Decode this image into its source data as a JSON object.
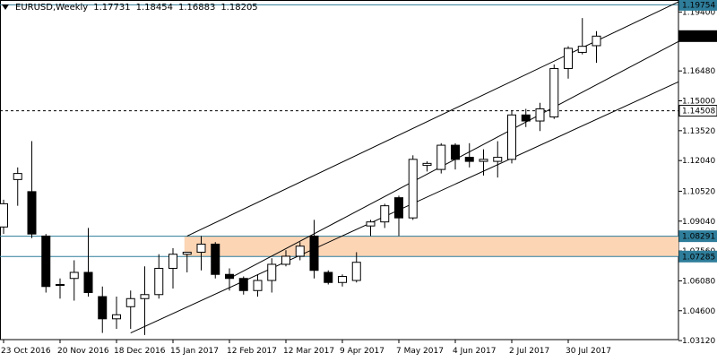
{
  "header": {
    "symbol_timeframe": "EURUSD,Weekly",
    "open": "1.17731",
    "high": "1.18454",
    "low": "1.16883",
    "close": "1.18205"
  },
  "chart_data": {
    "type": "candlestick",
    "ylim": [
      1.0317,
      1.1995
    ],
    "y_ticks": [
      "1.19400",
      "1.16480",
      "1.15000",
      "1.13520",
      "1.12040",
      "1.10520",
      "1.09040",
      "1.07560",
      "1.06080",
      "1.04600",
      "1.03120"
    ],
    "x_ticks": [
      "23 Oct 2016",
      "20 Nov 2016",
      "18 Dec 2016",
      "15 Jan 2017",
      "12 Feb 2017",
      "12 Mar 2017",
      "9 Apr 2017",
      "7 May 2017",
      "4 Jun 2017",
      "2 Jul 2017",
      "30 Jul 2017"
    ],
    "x_tick_index": [
      0,
      4,
      8,
      12,
      16,
      20,
      24,
      28,
      32,
      36,
      40
    ],
    "price_labels": [
      {
        "text": "1.19754",
        "value": 1.19754,
        "color": "#2e7d9a",
        "style": "line"
      },
      {
        "text": "1.18205",
        "value": 1.18205,
        "color": "#000000",
        "style": "current"
      },
      {
        "text": "1.14508",
        "value": 1.14508,
        "color": "#000000",
        "style": "dashed"
      },
      {
        "text": "1.08291",
        "value": 1.08291,
        "color": "#2e7d9a",
        "style": "line"
      },
      {
        "text": "1.07285",
        "value": 1.07285,
        "color": "#2e7d9a",
        "style": "line"
      }
    ],
    "zone": {
      "from": 1.07285,
      "to": 1.08291,
      "start_index": 13,
      "color": "#fcd5b5"
    },
    "candles": [
      {
        "o": 1.0875,
        "h": 1.101,
        "l": 1.084,
        "c": 1.099
      },
      {
        "o": 1.111,
        "h": 1.117,
        "l": 1.098,
        "c": 1.114
      },
      {
        "o": 1.105,
        "h": 1.13,
        "l": 1.082,
        "c": 1.084
      },
      {
        "o": 1.083,
        "h": 1.084,
        "l": 1.055,
        "c": 1.058
      },
      {
        "o": 1.059,
        "h": 1.062,
        "l": 1.052,
        "c": 1.059
      },
      {
        "o": 1.062,
        "h": 1.071,
        "l": 1.051,
        "c": 1.065
      },
      {
        "o": 1.065,
        "h": 1.087,
        "l": 1.053,
        "c": 1.055
      },
      {
        "o": 1.053,
        "h": 1.058,
        "l": 1.035,
        "c": 1.042
      },
      {
        "o": 1.042,
        "h": 1.053,
        "l": 1.037,
        "c": 1.044
      },
      {
        "o": 1.048,
        "h": 1.056,
        "l": 1.037,
        "c": 1.052
      },
      {
        "o": 1.052,
        "h": 1.068,
        "l": 1.034,
        "c": 1.054
      },
      {
        "o": 1.054,
        "h": 1.074,
        "l": 1.052,
        "c": 1.067
      },
      {
        "o": 1.067,
        "h": 1.077,
        "l": 1.057,
        "c": 1.074
      },
      {
        "o": 1.074,
        "h": 1.075,
        "l": 1.065,
        "c": 1.075
      },
      {
        "o": 1.075,
        "h": 1.083,
        "l": 1.066,
        "c": 1.079
      },
      {
        "o": 1.079,
        "h": 1.08,
        "l": 1.062,
        "c": 1.064
      },
      {
        "o": 1.064,
        "h": 1.067,
        "l": 1.056,
        "c": 1.062
      },
      {
        "o": 1.062,
        "h": 1.063,
        "l": 1.054,
        "c": 1.056
      },
      {
        "o": 1.056,
        "h": 1.064,
        "l": 1.053,
        "c": 1.061
      },
      {
        "o": 1.061,
        "h": 1.072,
        "l": 1.055,
        "c": 1.069
      },
      {
        "o": 1.069,
        "h": 1.076,
        "l": 1.068,
        "c": 1.073
      },
      {
        "o": 1.073,
        "h": 1.08,
        "l": 1.071,
        "c": 1.078
      },
      {
        "o": 1.083,
        "h": 1.091,
        "l": 1.062,
        "c": 1.066
      },
      {
        "o": 1.065,
        "h": 1.066,
        "l": 1.059,
        "c": 1.06
      },
      {
        "o": 1.06,
        "h": 1.064,
        "l": 1.058,
        "c": 1.063
      },
      {
        "o": 1.061,
        "h": 1.075,
        "l": 1.06,
        "c": 1.07
      },
      {
        "o": 1.088,
        "h": 1.091,
        "l": 1.083,
        "c": 1.09
      },
      {
        "o": 1.09,
        "h": 1.099,
        "l": 1.087,
        "c": 1.098
      },
      {
        "o": 1.102,
        "h": 1.103,
        "l": 1.083,
        "c": 1.092
      },
      {
        "o": 1.092,
        "h": 1.123,
        "l": 1.091,
        "c": 1.121
      },
      {
        "o": 1.118,
        "h": 1.12,
        "l": 1.115,
        "c": 1.119
      },
      {
        "o": 1.116,
        "h": 1.129,
        "l": 1.114,
        "c": 1.128
      },
      {
        "o": 1.128,
        "h": 1.129,
        "l": 1.116,
        "c": 1.121
      },
      {
        "o": 1.122,
        "h": 1.129,
        "l": 1.117,
        "c": 1.12
      },
      {
        "o": 1.12,
        "h": 1.126,
        "l": 1.113,
        "c": 1.121
      },
      {
        "o": 1.12,
        "h": 1.13,
        "l": 1.112,
        "c": 1.122
      },
      {
        "o": 1.121,
        "h": 1.145,
        "l": 1.119,
        "c": 1.143
      },
      {
        "o": 1.143,
        "h": 1.146,
        "l": 1.137,
        "c": 1.14
      },
      {
        "o": 1.14,
        "h": 1.149,
        "l": 1.135,
        "c": 1.146
      },
      {
        "o": 1.142,
        "h": 1.168,
        "l": 1.141,
        "c": 1.166
      },
      {
        "o": 1.166,
        "h": 1.177,
        "l": 1.161,
        "c": 1.176
      },
      {
        "o": 1.174,
        "h": 1.191,
        "l": 1.173,
        "c": 1.177
      },
      {
        "o": 1.17731,
        "h": 1.18454,
        "l": 1.16883,
        "c": 1.18205
      }
    ],
    "channel": {
      "top": [
        {
          "i": 13,
          "v": 1.083
        },
        {
          "i": 43,
          "v": 1.183
        }
      ],
      "middle": [
        {
          "i": 16,
          "v": 1.062
        },
        {
          "i": 45,
          "v": 1.169
        }
      ],
      "bottom": [
        {
          "i": 9,
          "v": 1.035
        },
        {
          "i": 43,
          "v": 1.144
        }
      ]
    }
  }
}
